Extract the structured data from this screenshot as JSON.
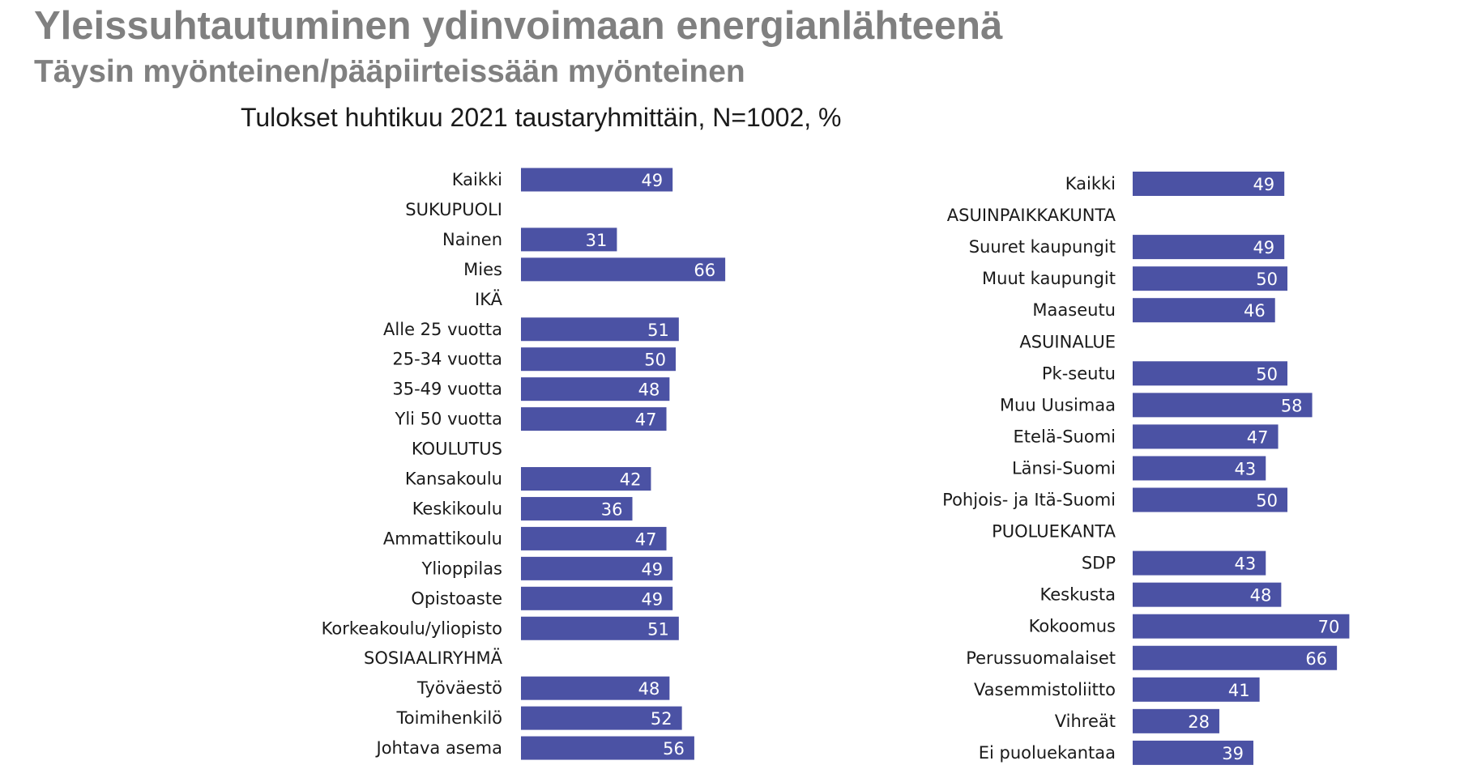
{
  "title": "Yleissuhtautuminen ydinvoimaan energianlähteenä",
  "subtitle": "Täysin myönteinen/pääpiirteissään myönteinen",
  "caption": "Tulokset huhtikuu 2021 taustaryhmittäin, N=1002, %",
  "colors": {
    "bar": "#4b52a4",
    "title": "#808080",
    "label": "#1a1a1a",
    "value": "#ffffff"
  },
  "chart_data": [
    {
      "type": "bar",
      "orientation": "horizontal",
      "title": "Tulokset huhtikuu 2021 taustaryhmittäin, N=1002, %",
      "xlim": [
        0,
        100
      ],
      "rows": [
        {
          "label": "Kaikki",
          "value": 49
        },
        {
          "label": "SUKUPUOLI",
          "value": null
        },
        {
          "label": "Nainen",
          "value": 31
        },
        {
          "label": "Mies",
          "value": 66
        },
        {
          "label": "IKÄ",
          "value": null
        },
        {
          "label": "Alle 25 vuotta",
          "value": 51
        },
        {
          "label": "25-34 vuotta",
          "value": 50
        },
        {
          "label": "35-49 vuotta",
          "value": 48
        },
        {
          "label": "Yli 50 vuotta",
          "value": 47
        },
        {
          "label": "KOULUTUS",
          "value": null
        },
        {
          "label": "Kansakoulu",
          "value": 42
        },
        {
          "label": "Keskikoulu",
          "value": 36
        },
        {
          "label": "Ammattikoulu",
          "value": 47
        },
        {
          "label": "Ylioppilas",
          "value": 49
        },
        {
          "label": "Opistoaste",
          "value": 49
        },
        {
          "label": "Korkeakoulu/yliopisto",
          "value": 51
        },
        {
          "label": "SOSIAALIRYHMÄ",
          "value": null
        },
        {
          "label": "Työväestö",
          "value": 48
        },
        {
          "label": "Toimihenkilö",
          "value": 52
        },
        {
          "label": "Johtava asema",
          "value": 56
        }
      ]
    },
    {
      "type": "bar",
      "orientation": "horizontal",
      "title": "Tulokset huhtikuu 2021 taustaryhmittäin, N=1002, %",
      "xlim": [
        0,
        100
      ],
      "rows": [
        {
          "label": "Kaikki",
          "value": 49
        },
        {
          "label": "ASUINPAIKKAKUNTA",
          "value": null
        },
        {
          "label": "Suuret kaupungit",
          "value": 49
        },
        {
          "label": "Muut kaupungit",
          "value": 50
        },
        {
          "label": "Maaseutu",
          "value": 46
        },
        {
          "label": "ASUINALUE",
          "value": null
        },
        {
          "label": "Pk-seutu",
          "value": 50
        },
        {
          "label": "Muu Uusimaa",
          "value": 58
        },
        {
          "label": "Etelä-Suomi",
          "value": 47
        },
        {
          "label": "Länsi-Suomi",
          "value": 43
        },
        {
          "label": "Pohjois- ja Itä-Suomi",
          "value": 50
        },
        {
          "label": "PUOLUEKANTA",
          "value": null
        },
        {
          "label": "SDP",
          "value": 43
        },
        {
          "label": "Keskusta",
          "value": 48
        },
        {
          "label": "Kokoomus",
          "value": 70
        },
        {
          "label": "Perussuomalaiset",
          "value": 66
        },
        {
          "label": "Vasemmistoliitto",
          "value": 41
        },
        {
          "label": "Vihreät",
          "value": 28
        },
        {
          "label": "Ei puoluekantaa",
          "value": 39
        }
      ]
    }
  ]
}
